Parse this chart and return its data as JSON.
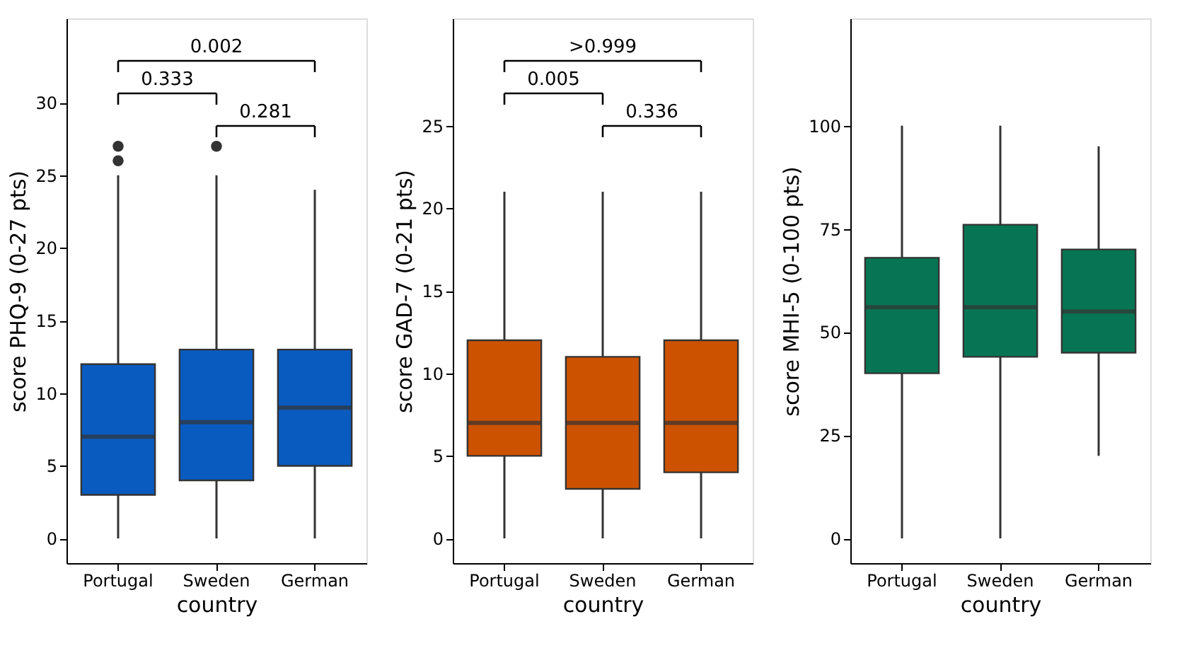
{
  "chart_data": [
    {
      "type": "box",
      "xlabel": "country",
      "ylabel": "score PHQ-9 (0-27 pts)",
      "categories": [
        "Portugal",
        "Sweden",
        "German"
      ],
      "ylim": [
        -1.7,
        35.8
      ],
      "yticks": [
        0,
        5,
        10,
        15,
        20,
        25,
        30
      ],
      "grid": false,
      "annotations": [
        "0.002",
        "0.333",
        "0.281"
      ],
      "series": [
        {
          "color": "#0a5bbf",
          "boxes": [
            {
              "low": 0,
              "q1": 3,
              "median": 7,
              "q3": 12,
              "high": 25,
              "outliers": [
                26,
                27
              ]
            },
            {
              "low": 0,
              "q1": 4,
              "median": 8,
              "q3": 13,
              "high": 25,
              "outliers": [
                27
              ]
            },
            {
              "low": 0,
              "q1": 5,
              "median": 9,
              "q3": 13,
              "high": 24
            }
          ]
        }
      ]
    },
    {
      "type": "box",
      "xlabel": "country",
      "ylabel": "score GAD-7 (0-21 pts)",
      "categories": [
        "Portugal",
        "Sweden",
        "German"
      ],
      "ylim": [
        -1.5,
        31.5
      ],
      "yticks": [
        0,
        5,
        10,
        15,
        20,
        25
      ],
      "grid": false,
      "annotations": [
        ">0.999",
        "0.005",
        "0.336"
      ],
      "series": [
        {
          "color": "#cc5200",
          "boxes": [
            {
              "low": 0,
              "q1": 5,
              "median": 7,
              "q3": 12,
              "high": 21
            },
            {
              "low": 0,
              "q1": 3,
              "median": 7,
              "q3": 11,
              "high": 21
            },
            {
              "low": 0,
              "q1": 4,
              "median": 7,
              "q3": 12,
              "high": 21
            }
          ]
        }
      ]
    },
    {
      "type": "box",
      "xlabel": "country",
      "ylabel": "score MHI-5 (0-100 pts)",
      "categories": [
        "Portugal",
        "Sweden",
        "German"
      ],
      "ylim": [
        -6,
        126
      ],
      "yticks": [
        0,
        25,
        50,
        75,
        100
      ],
      "grid": false,
      "series": [
        {
          "color": "#077553",
          "boxes": [
            {
              "low": 0,
              "q1": 40,
              "median": 56,
              "q3": 68,
              "high": 100
            },
            {
              "low": 0,
              "q1": 44,
              "median": 56,
              "q3": 76,
              "high": 100
            },
            {
              "low": 20,
              "q1": 45,
              "median": 55,
              "q3": 70,
              "high": 95
            }
          ]
        }
      ]
    }
  ]
}
